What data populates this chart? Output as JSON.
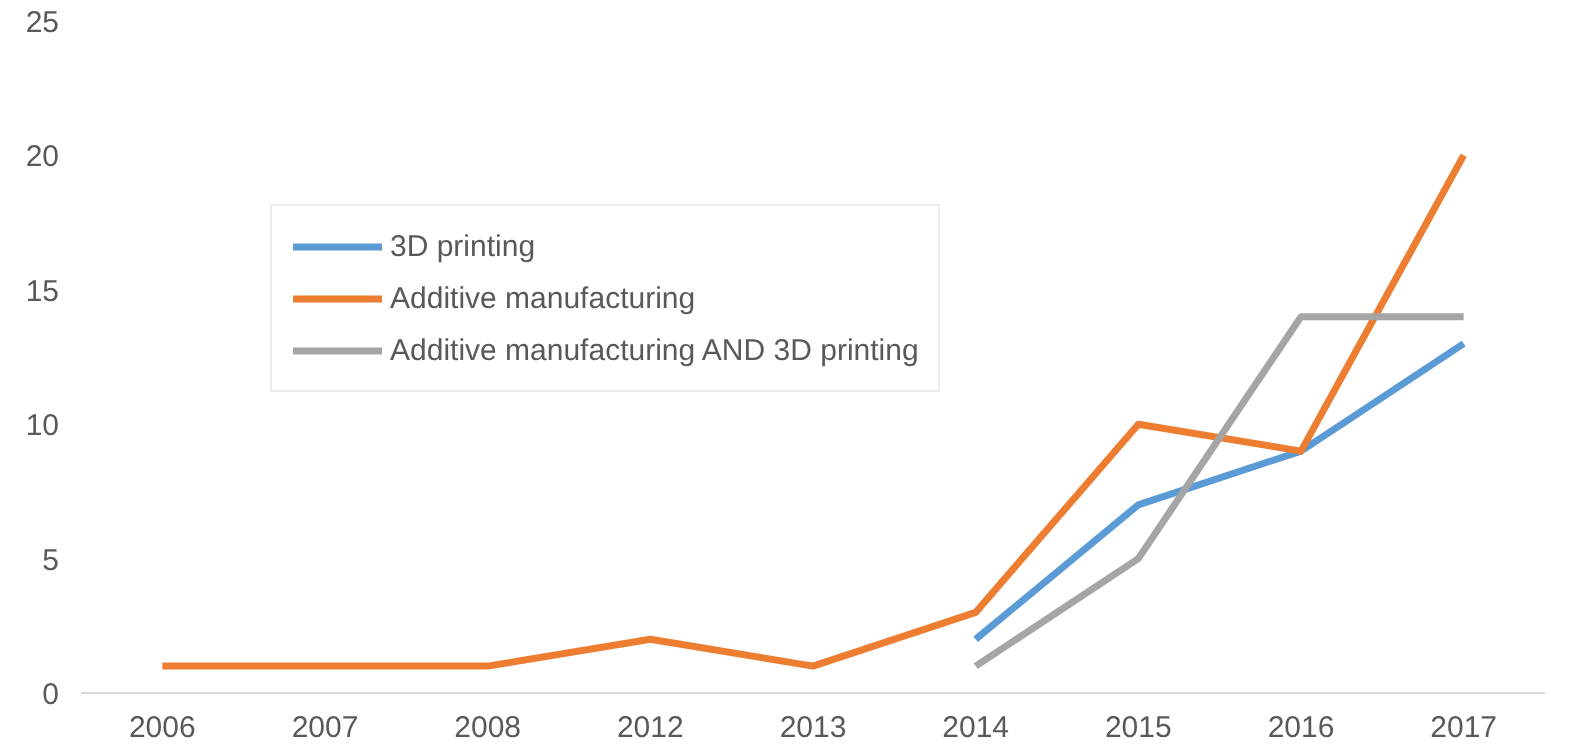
{
  "chart_data": {
    "type": "line",
    "categories": [
      "2006",
      "2007",
      "2008",
      "2012",
      "2013",
      "2014",
      "2015",
      "2016",
      "2017"
    ],
    "series": [
      {
        "name": "3D printing",
        "color": "#5b9bd5",
        "values": [
          null,
          null,
          null,
          null,
          null,
          2,
          7,
          9,
          13
        ]
      },
      {
        "name": "Additive manufacturing",
        "color": "#ed7d31",
        "values": [
          1,
          1,
          1,
          2,
          1,
          3,
          10,
          9,
          20
        ]
      },
      {
        "name": "Additive manufacturing AND 3D printing",
        "color": "#a5a5a5",
        "values": [
          null,
          null,
          null,
          null,
          null,
          1,
          5,
          14,
          14
        ]
      }
    ],
    "ylim": [
      0,
      25
    ],
    "yticks": [
      0,
      5,
      10,
      15,
      20,
      25
    ],
    "grid": false,
    "legend": "top left",
    "marker": "none",
    "line_style": "solid"
  }
}
